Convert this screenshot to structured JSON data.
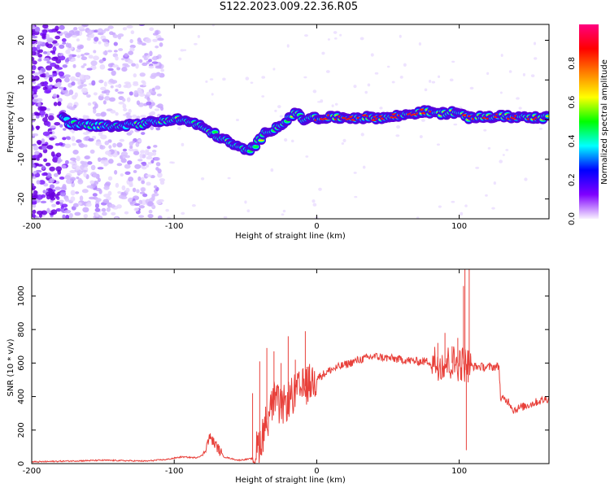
{
  "title": "S122.2023.009.22.36.R05",
  "chart_data": [
    {
      "type": "heatmap",
      "xlabel": "Height of straight line (km)",
      "ylabel": "Frequency (Hz)",
      "xlim": [
        -200,
        163
      ],
      "ylim": [
        -25,
        24
      ],
      "x_ticks": [
        "-200",
        "-100",
        "0",
        "100"
      ],
      "y_ticks": [
        "20",
        "10",
        "0",
        "-10",
        "-20"
      ],
      "colorbar": {
        "label": "Normalized spectral amplitude",
        "range": [
          0,
          1
        ],
        "ticks": [
          "0.0",
          "0.2",
          "0.4",
          "0.6",
          "0.8"
        ],
        "colors": [
          "#f8f0ff",
          "#7f00ff",
          "#0000ff",
          "#00ffff",
          "#00ff00",
          "#ffff00",
          "#ff8000",
          "#ff0000",
          "#ff0080"
        ]
      },
      "ridge_frequency": [
        [
          -175,
          -1
        ],
        [
          -160,
          -1.5
        ],
        [
          -140,
          -1.5
        ],
        [
          -120,
          -1
        ],
        [
          -105,
          0
        ],
        [
          -95,
          0
        ],
        [
          -85,
          -1
        ],
        [
          -75,
          -3
        ],
        [
          -65,
          -5
        ],
        [
          -55,
          -7
        ],
        [
          -48,
          -8
        ],
        [
          -42,
          -6
        ],
        [
          -35,
          -3
        ],
        [
          -28,
          -2
        ],
        [
          -20,
          0
        ],
        [
          -15,
          2
        ],
        [
          -10,
          0
        ],
        [
          0,
          0.5
        ],
        [
          20,
          0.5
        ],
        [
          50,
          0.5
        ],
        [
          75,
          2
        ],
        [
          90,
          1.5
        ],
        [
          98,
          2
        ],
        [
          105,
          0.5
        ],
        [
          130,
          0.8
        ],
        [
          163,
          0.5
        ]
      ]
    },
    {
      "type": "line",
      "xlabel": "Height of straight line (km)",
      "ylabel": "SNR (10 * v/v)",
      "xlim": [
        -200,
        163
      ],
      "ylim": [
        0,
        1160
      ],
      "x_ticks": [
        "-200",
        "-100",
        "0",
        "100"
      ],
      "y_ticks": [
        "0",
        "200",
        "400",
        "600",
        "800",
        "1000"
      ],
      "series": [
        {
          "color": "#e8403a",
          "points": [
            [
              -200,
              10
            ],
            [
              -150,
              20
            ],
            [
              -120,
              15
            ],
            [
              -105,
              25
            ],
            [
              -95,
              40
            ],
            [
              -85,
              35
            ],
            [
              -80,
              50
            ],
            [
              -75,
              160
            ],
            [
              -70,
              100
            ],
            [
              -65,
              40
            ],
            [
              -55,
              20
            ],
            [
              -45,
              30
            ],
            [
              -40,
              120
            ],
            [
              -35,
              260
            ],
            [
              -30,
              380
            ],
            [
              -25,
              330
            ],
            [
              -20,
              380
            ],
            [
              -15,
              420
            ],
            [
              -10,
              450
            ],
            [
              -5,
              480
            ],
            [
              0,
              510
            ],
            [
              10,
              560
            ],
            [
              20,
              590
            ],
            [
              30,
              620
            ],
            [
              40,
              640
            ],
            [
              50,
              630
            ],
            [
              60,
              620
            ],
            [
              70,
              610
            ],
            [
              80,
              610
            ],
            [
              90,
              600
            ],
            [
              100,
              600
            ],
            [
              105,
              590
            ],
            [
              110,
              580
            ],
            [
              120,
              575
            ],
            [
              128,
              580
            ],
            [
              129,
              390
            ],
            [
              135,
              370
            ],
            [
              138,
              320
            ],
            [
              145,
              340
            ],
            [
              155,
              370
            ],
            [
              163,
              390
            ]
          ],
          "spikes": [
            [
              -45,
              420
            ],
            [
              -40,
              610
            ],
            [
              -35,
              690
            ],
            [
              -30,
              670
            ],
            [
              -25,
              600
            ],
            [
              -20,
              760
            ],
            [
              -15,
              620
            ],
            [
              -8,
              790
            ],
            [
              -3,
              520
            ],
            [
              85,
              720
            ],
            [
              90,
              780
            ],
            [
              95,
              700
            ],
            [
              99,
              750
            ],
            [
              103,
              1060
            ],
            [
              104,
              1160
            ],
            [
              105,
              80
            ],
            [
              107,
              1160
            ],
            [
              108,
              640
            ]
          ]
        }
      ]
    }
  ]
}
